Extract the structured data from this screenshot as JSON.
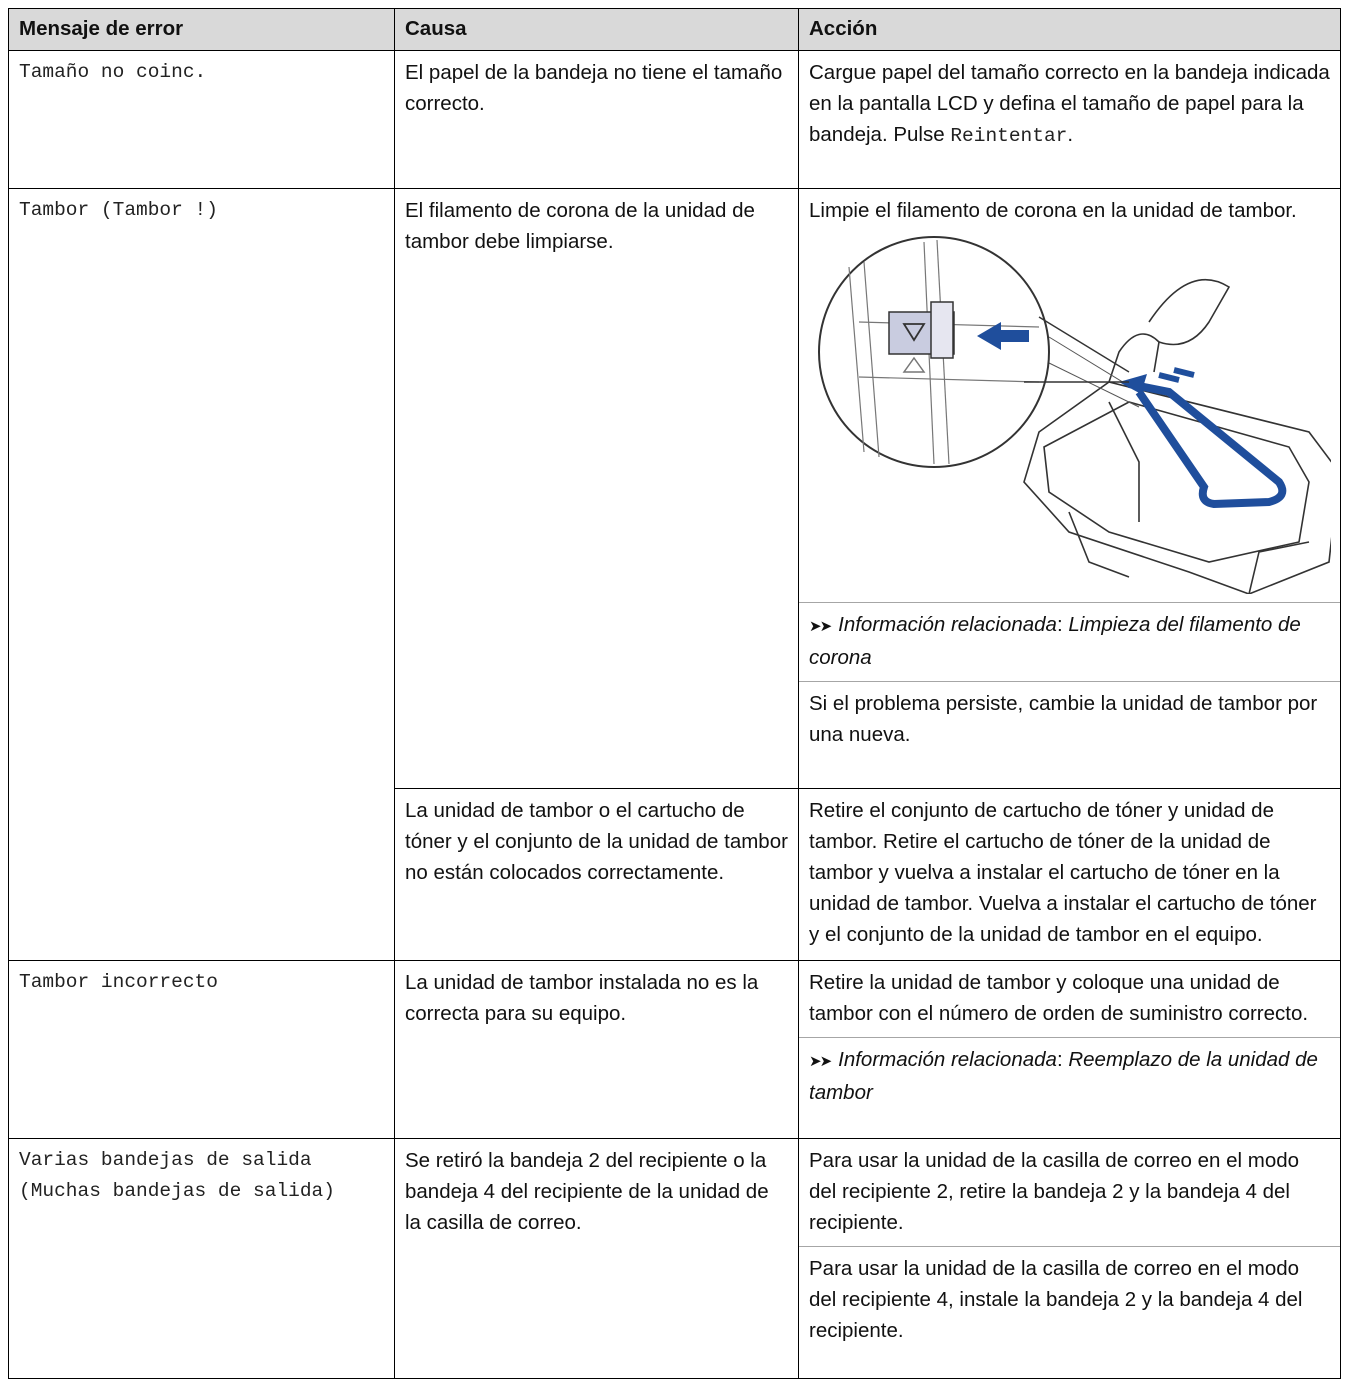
{
  "table": {
    "headers": [
      "Mensaje de error",
      "Causa",
      "Acción"
    ],
    "rows": [
      {
        "message": "Tamaño no coinc.",
        "causes": [
          {
            "cause": "El papel de la bandeja no tiene el tamaño correcto.",
            "actions": [
              {
                "text": "Cargue papel del tamaño correcto en la bandeja indicada en la pantalla LCD y defina el tamaño de papel para la bandeja. Pulse",
                "code": "Reintentar",
                "end": "."
              }
            ]
          }
        ]
      },
      {
        "message": "Tambor (Tambor !)",
        "causes": [
          {
            "cause": "El filamento de corona de la unidad de tambor debe limpiarse.",
            "actions": [
              {
                "text": "Limpie el filamento de corona en la unidad de tambor."
              },
              {
                "label": "Información relacionada",
                "sep": ":",
                "link": "Limpieza del filamento de corona"
              },
              {
                "text": "Si el problema persiste, cambie la unidad de tambor por una nueva."
              }
            ]
          },
          {
            "cause": "La unidad de tambor o el cartucho de tóner y el conjunto de la unidad de tambor no están colocados correctamente.",
            "actions": [
              {
                "text": "Retire el conjunto de cartucho de tóner y unidad de tambor. Retire el cartucho de tóner de la unidad de tambor y vuelva a instalar el cartucho de tóner en la unidad de tambor. Vuelva a instalar el cartucho de tóner y el conjunto de la unidad de tambor en el equipo."
              }
            ]
          }
        ]
      },
      {
        "message": "Tambor incorrecto",
        "causes": [
          {
            "cause": "La unidad de tambor instalada no es la correcta para su equipo.",
            "actions": [
              {
                "text": "Retire la unidad de tambor y coloque una unidad de tambor con el número de orden de suministro correcto."
              },
              {
                "label": "Información relacionada",
                "sep": ":",
                "link": "Reemplazo de la unidad de tambor"
              }
            ]
          }
        ]
      },
      {
        "message": "Varias bandejas de salida (Muchas bandejas de salida)",
        "causes": [
          {
            "cause": "Se retiró la bandeja 2 del recipiente o la bandeja 4 del recipiente de la unidad de la casilla de correo.",
            "actions": [
              {
                "text": "Para usar la unidad de la casilla de correo en el modo del recipiente 2, retire la bandeja 2 y la bandeja 4 del recipiente."
              },
              {
                "text": "Para usar la unidad de la casilla de correo en el modo del recipiente 4, instale la bandeja 2 y la bandeja 4 del recipiente."
              }
            ]
          }
        ]
      }
    ]
  }
}
